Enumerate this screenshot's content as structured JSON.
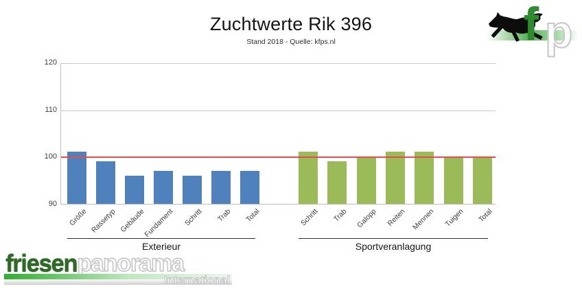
{
  "title": "Zuchtwerte Rik 396",
  "subtitle": "Stand 2018 - Quelle: kfps.nl",
  "chart_data": {
    "type": "bar",
    "title": "Zuchtwerte Rik 396",
    "subtitle": "Stand 2018 - Quelle: kfps.nl",
    "ylim": [
      90,
      120
    ],
    "yticks": [
      90,
      100,
      110,
      120
    ],
    "grid": true,
    "legend": "none",
    "reference_line": {
      "value": 100,
      "color": "#e74c4c"
    },
    "groups": [
      {
        "label": "Exterieur",
        "color": "#4f81bd",
        "categories": [
          "Größe",
          "Rassetyp",
          "Gebäude",
          "Fundament",
          "Schritt",
          "Trab",
          "Total"
        ],
        "values": [
          101,
          99,
          96,
          97,
          96,
          97,
          97
        ]
      },
      {
        "label": "Sportveranlagung",
        "color": "#9bbb59",
        "categories": [
          "Schritt",
          "Trab",
          "Galopp",
          "Reiten",
          "Mennen",
          "Tuigen",
          "Total"
        ],
        "values": [
          101,
          99,
          100,
          101,
          101,
          100,
          100
        ]
      }
    ]
  },
  "branding": {
    "fp_logo": {
      "letter_f": "f",
      "letter_p": "p",
      "accent_green": "#2e8b2e"
    },
    "footer_logo": {
      "word_green": "friesen",
      "word_light": "panorama",
      "tagline": "International",
      "green": "#2d6b26"
    }
  }
}
